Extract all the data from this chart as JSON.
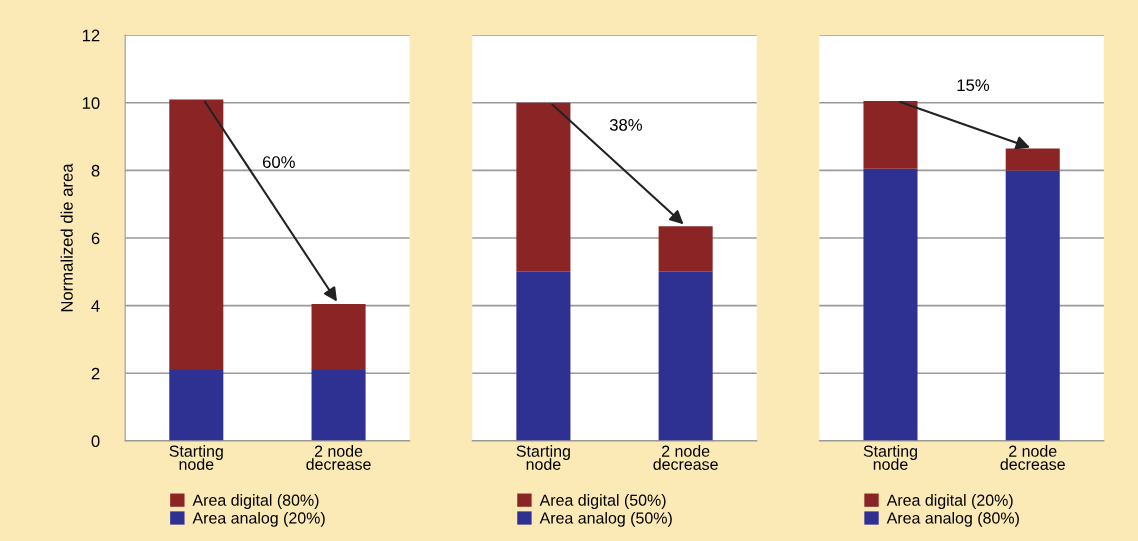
{
  "chart_data": [
    {
      "type": "bar",
      "stacked": true,
      "ylabel": "Normalized die area",
      "categories": [
        "Starting\nnode",
        "2 node\ndecrease"
      ],
      "ylim": [
        0,
        12
      ],
      "yticks": [
        0,
        2,
        4,
        6,
        8,
        10,
        12
      ],
      "grid": "y",
      "legend": "bottom",
      "annotations": [
        "60%"
      ],
      "series": [
        {
          "name": "Area analog (20%)",
          "color": "#2e3192",
          "values": [
            2.1,
            2.1
          ]
        },
        {
          "name": "Area digital (80%)",
          "color": "#8b2525",
          "values": [
            8.0,
            1.95
          ]
        }
      ]
    },
    {
      "type": "bar",
      "stacked": true,
      "categories": [
        "Starting\nnode",
        "2 node\ndecrease"
      ],
      "ylim": [
        0,
        12
      ],
      "yticks": [
        0,
        2,
        4,
        6,
        8,
        10,
        12
      ],
      "grid": "y",
      "legend": "bottom",
      "tick_labels": "x",
      "annotations": [
        "38%"
      ],
      "series": [
        {
          "name": "Area analog (50%)",
          "color": "#2e3192",
          "values": [
            5.0,
            5.0
          ]
        },
        {
          "name": "Area digital (50%)",
          "color": "#8b2525",
          "values": [
            5.0,
            1.35
          ]
        }
      ]
    },
    {
      "type": "bar",
      "stacked": true,
      "categories": [
        "Starting\nnode",
        "2 node\ndecrease"
      ],
      "ylim": [
        0,
        12
      ],
      "yticks": [
        0,
        2,
        4,
        6,
        8,
        10,
        12
      ],
      "grid": "y",
      "legend": "bottom",
      "tick_labels": "x",
      "annotations": [
        "15%"
      ],
      "series": [
        {
          "name": "Area analog (80%)",
          "color": "#2e3192",
          "values": [
            8.05,
            8.0
          ]
        },
        {
          "name": "Area digital (20%)",
          "color": "#8b2525",
          "values": [
            2.0,
            0.65
          ]
        }
      ]
    }
  ]
}
